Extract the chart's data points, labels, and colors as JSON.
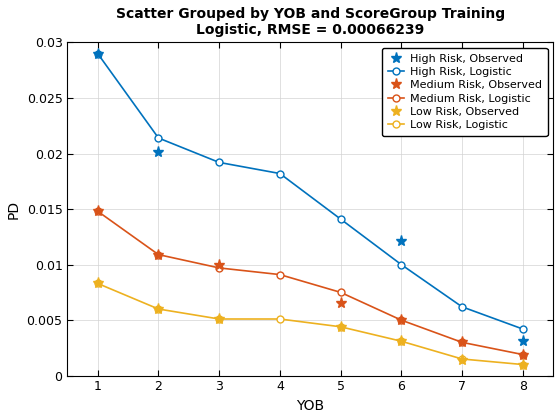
{
  "title": "Scatter Grouped by YOB and ScoreGroup Training\nLogistic, RMSE = 0.00066239",
  "xlabel": "YOB",
  "ylabel": "PD",
  "xob": [
    1,
    2,
    3,
    4,
    5,
    6,
    7,
    8
  ],
  "high_observed": [
    0.029,
    0.0201,
    null,
    null,
    null,
    0.0121,
    null,
    0.0031
  ],
  "high_logistic": [
    0.029,
    0.0214,
    0.0192,
    0.0182,
    0.0141,
    0.01,
    0.0062,
    0.0042
  ],
  "medium_observed": [
    0.0148,
    0.0109,
    0.01,
    null,
    0.0065,
    0.005,
    0.003,
    0.0019
  ],
  "medium_logistic": [
    0.0148,
    0.0109,
    0.0097,
    0.0091,
    0.0075,
    0.005,
    0.003,
    0.0019
  ],
  "low_observed": [
    0.0083,
    0.006,
    0.0051,
    null,
    0.0044,
    0.0031,
    0.0014,
    0.001
  ],
  "low_logistic": [
    0.0083,
    0.006,
    0.0051,
    0.0051,
    0.0044,
    0.0031,
    0.0015,
    0.001
  ],
  "high_color": "#0072BD",
  "medium_color": "#D95319",
  "low_color": "#EDB120",
  "ylim": [
    0,
    0.03
  ],
  "xlim": [
    0.5,
    8.5
  ],
  "yticks": [
    0,
    0.005,
    0.01,
    0.015,
    0.02,
    0.025,
    0.03
  ],
  "ytick_labels": [
    "0",
    "0.005",
    "0.01",
    "0.015",
    "0.02",
    "0.025",
    "0.03"
  ],
  "xticks": [
    1,
    2,
    3,
    4,
    5,
    6,
    7,
    8
  ],
  "figsize": [
    5.6,
    4.2
  ],
  "dpi": 100,
  "title_fontsize": 10,
  "axis_label_fontsize": 10,
  "tick_fontsize": 9,
  "legend_fontsize": 8
}
